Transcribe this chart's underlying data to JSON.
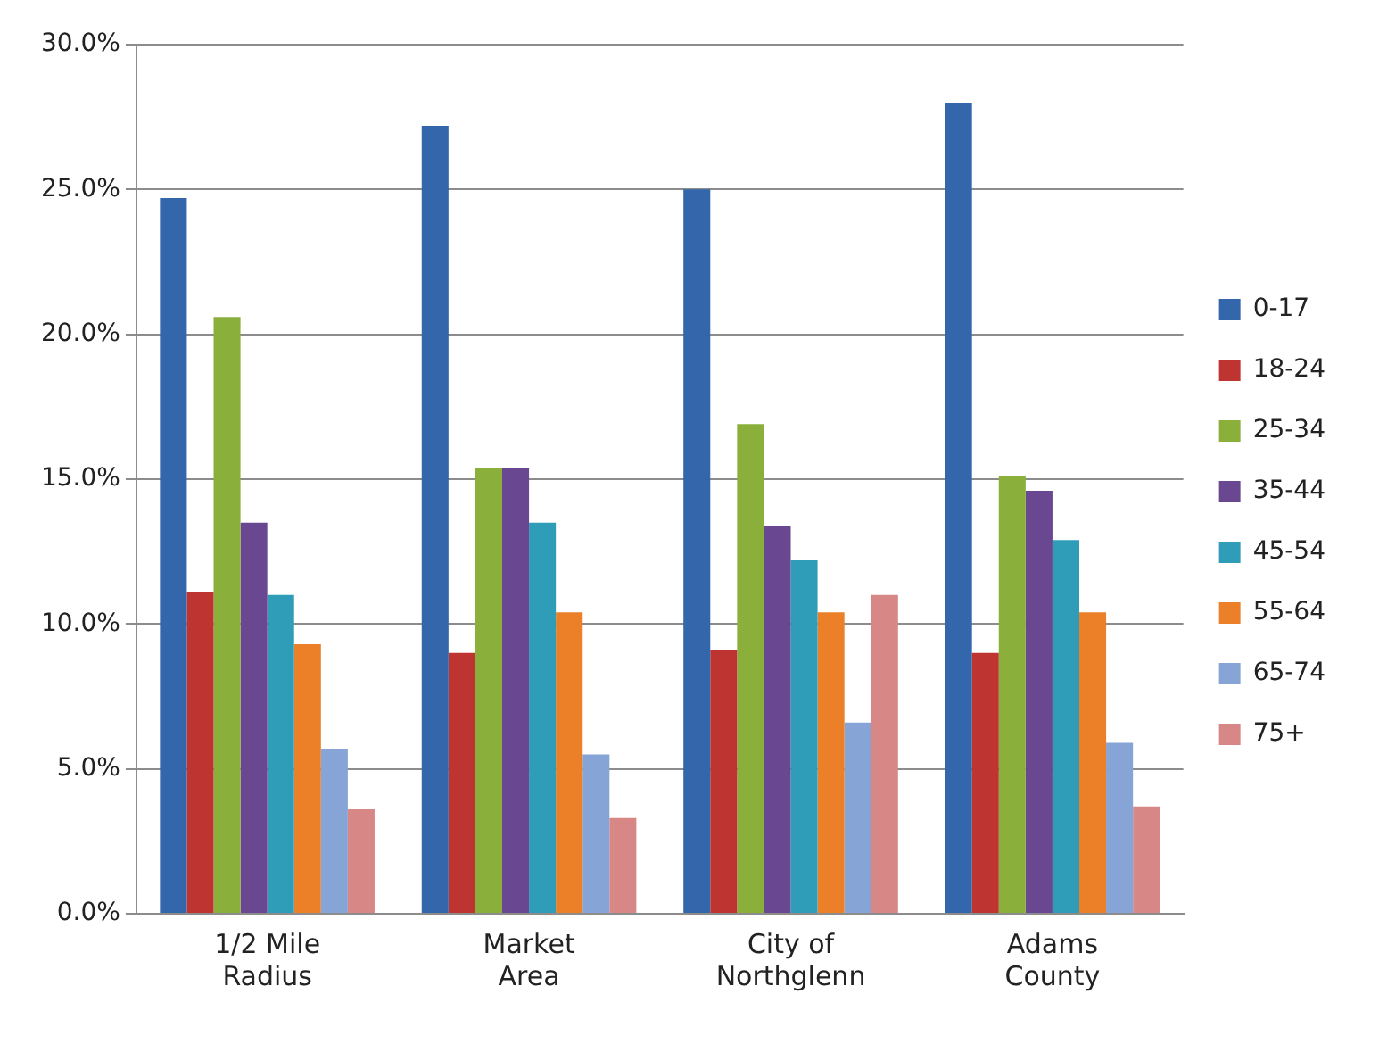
{
  "chart_data": {
    "type": "bar",
    "categories": [
      "1/2 Mile Radius",
      "Market Area",
      "City of Northglenn",
      "Adams County"
    ],
    "series": [
      {
        "name": "0-17",
        "color": "#3366aa",
        "values": [
          24.7,
          27.2,
          25.0,
          28.0
        ]
      },
      {
        "name": "18-24",
        "color": "#be3431",
        "values": [
          11.1,
          9.0,
          9.1,
          9.0
        ]
      },
      {
        "name": "25-34",
        "color": "#8aaf3b",
        "values": [
          20.6,
          15.4,
          16.9,
          15.1
        ]
      },
      {
        "name": "35-44",
        "color": "#6a4791",
        "values": [
          13.5,
          15.4,
          13.4,
          14.6
        ]
      },
      {
        "name": "45-54",
        "color": "#2f9db8",
        "values": [
          11.0,
          13.5,
          12.2,
          12.9
        ]
      },
      {
        "name": "55-64",
        "color": "#eb8028",
        "values": [
          9.3,
          10.4,
          10.4,
          10.4
        ]
      },
      {
        "name": "65-74",
        "color": "#86a4d6",
        "values": [
          5.7,
          5.5,
          6.6,
          5.9
        ]
      },
      {
        "name": "75+",
        "color": "#d78786",
        "values": [
          3.6,
          3.3,
          11.0,
          3.7
        ]
      }
    ],
    "ylim": [
      0,
      30
    ],
    "yticks": [
      {
        "value": 0,
        "label": "0.0%"
      },
      {
        "value": 5,
        "label": "5.0%"
      },
      {
        "value": 10,
        "label": "10.0%"
      },
      {
        "value": 15,
        "label": "15.0%"
      },
      {
        "value": 20,
        "label": "20.0%"
      },
      {
        "value": 25,
        "label": "25.0%"
      },
      {
        "value": 30,
        "label": "30.0%"
      }
    ],
    "grid": "y",
    "legend": "right"
  }
}
